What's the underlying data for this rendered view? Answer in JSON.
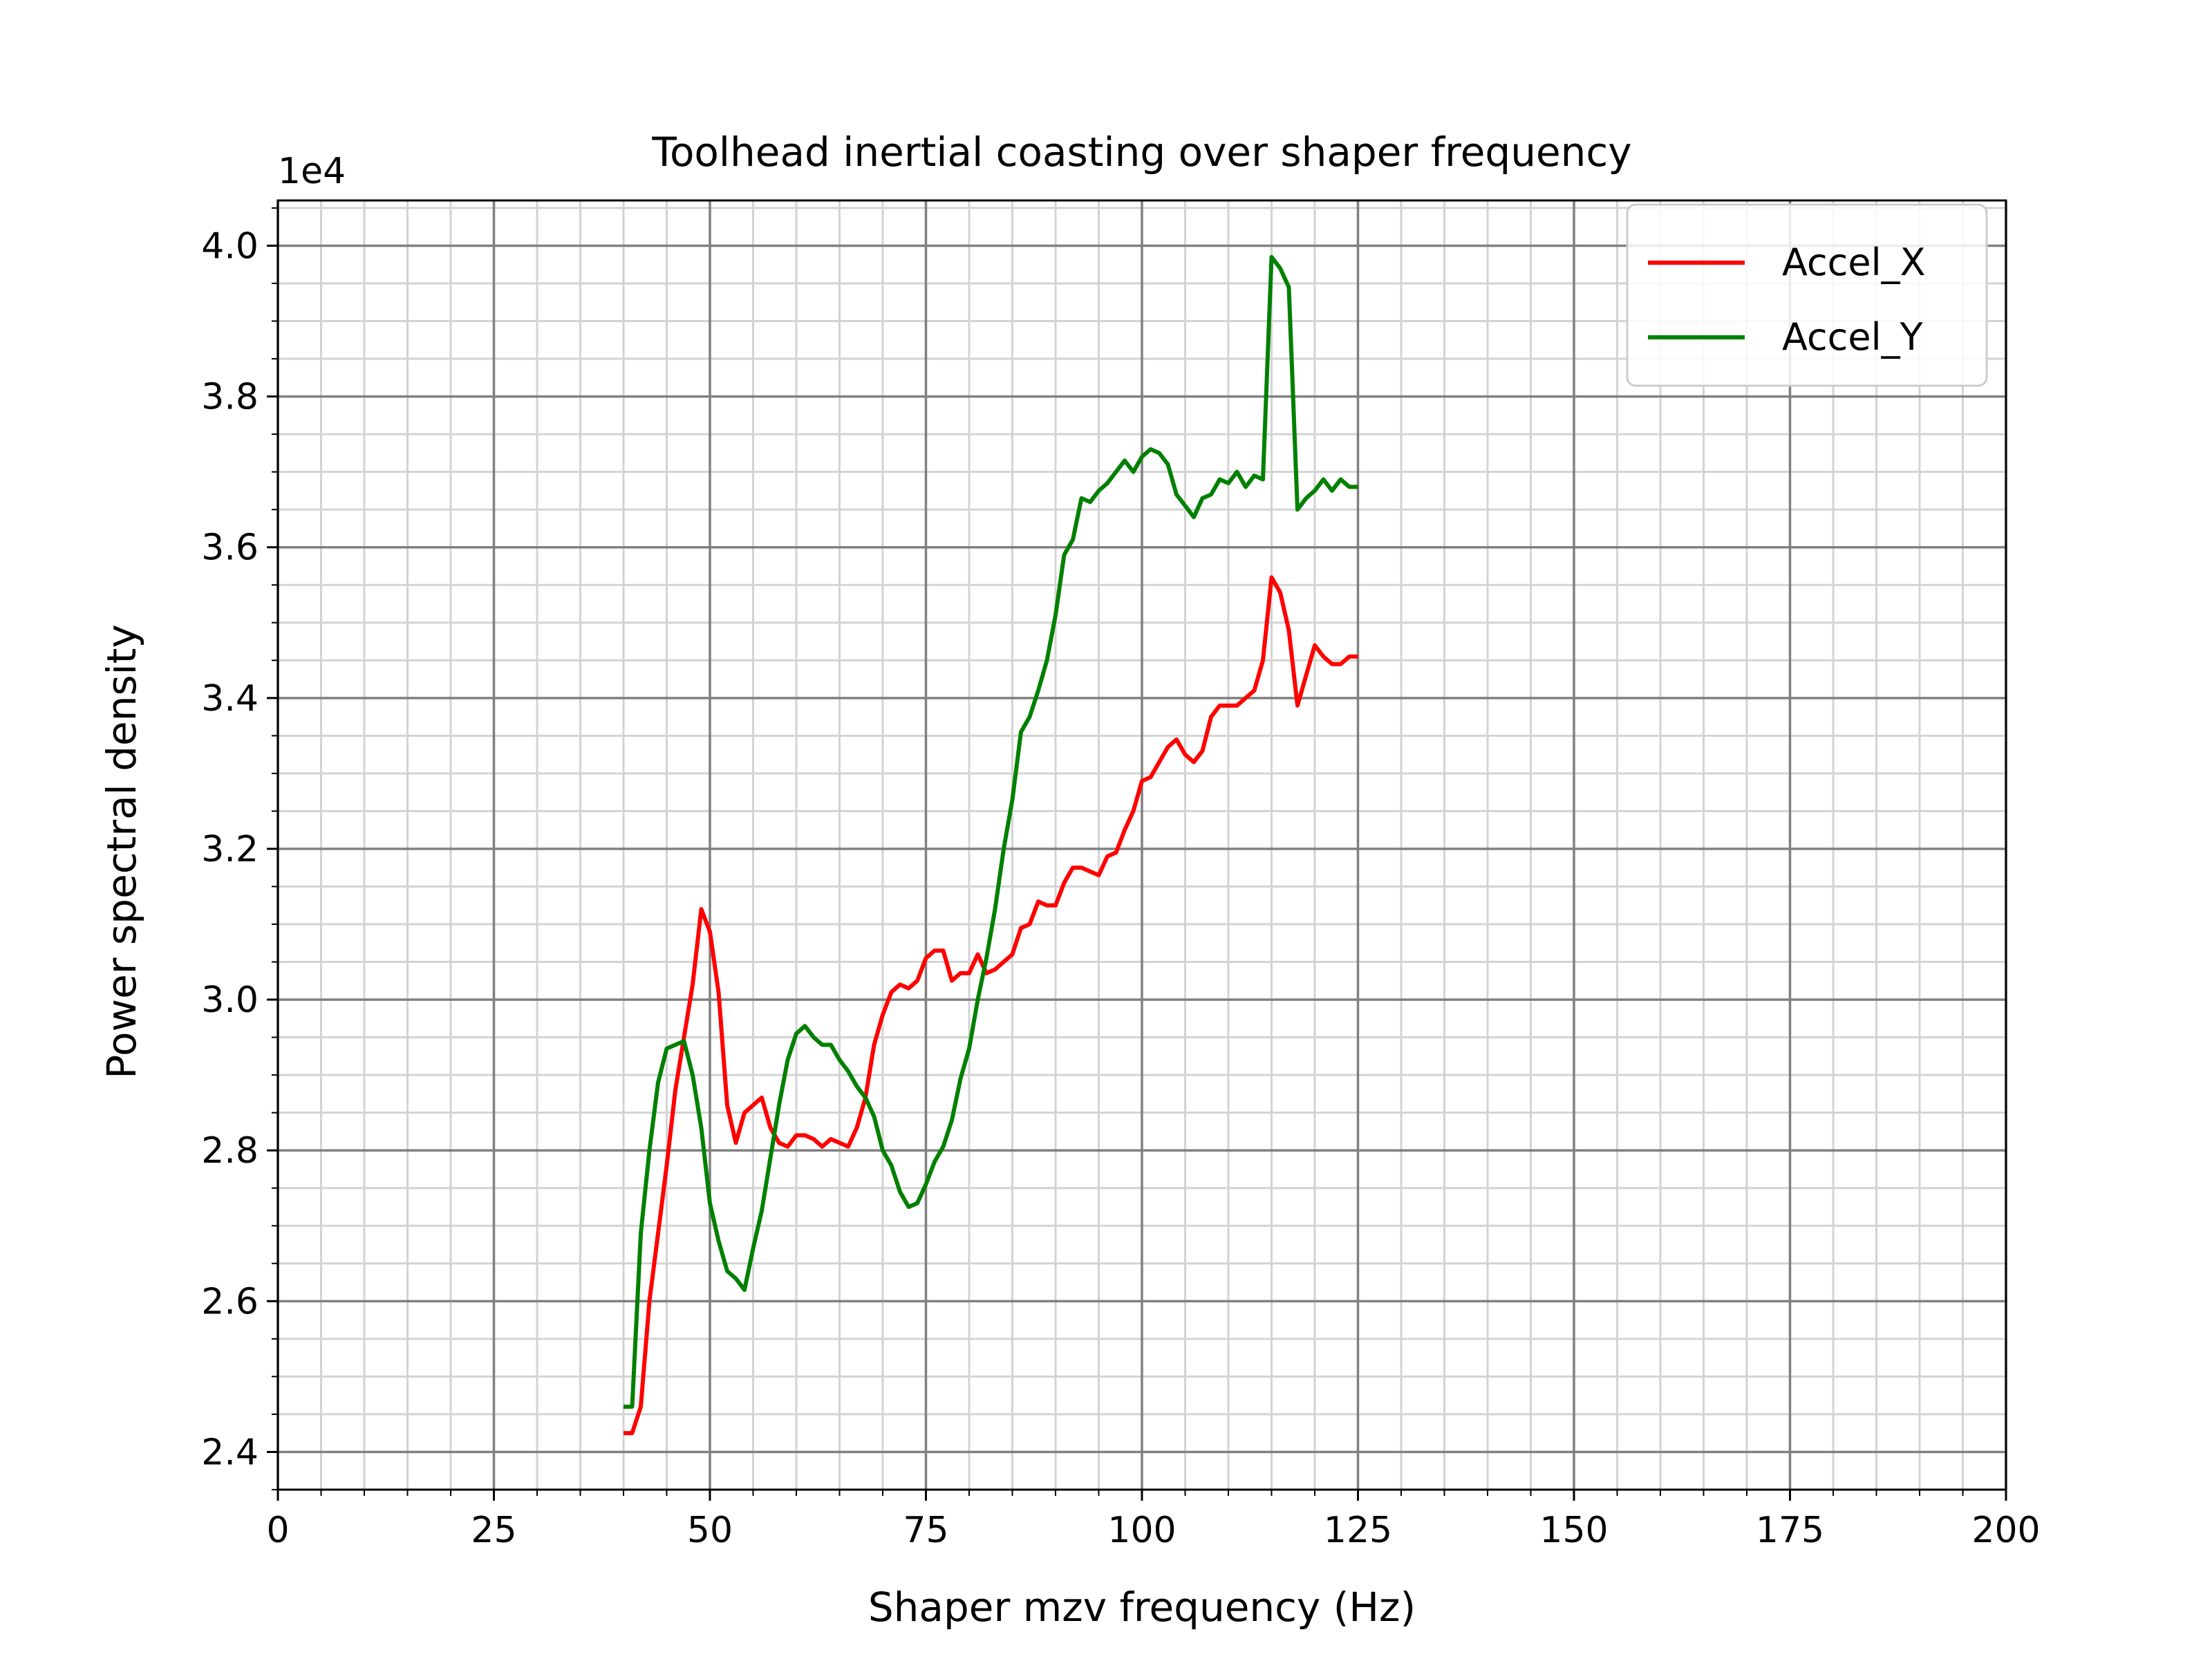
{
  "chart_data": {
    "type": "line",
    "title": "Toolhead inertial coasting over shaper frequency",
    "xlabel": "Shaper mzv frequency (Hz)",
    "ylabel": "Power spectral density",
    "y_offset_label": "1e4",
    "xlim": [
      0,
      200
    ],
    "ylim": [
      2.35,
      4.06
    ],
    "x_ticks": [
      0,
      25,
      50,
      75,
      100,
      125,
      150,
      175,
      200
    ],
    "x_tick_labels": [
      "0",
      "25",
      "50",
      "75",
      "100",
      "125",
      "150",
      "175",
      "200"
    ],
    "y_ticks": [
      2.4,
      2.6,
      2.8,
      3.0,
      3.2,
      3.4,
      3.6,
      3.8,
      4.0
    ],
    "y_tick_labels": [
      "2.4",
      "2.6",
      "2.8",
      "3.0",
      "3.2",
      "3.4",
      "3.6",
      "3.8",
      "4.0"
    ],
    "x_minor_step": 5,
    "y_minor_step": 0.05,
    "grid": true,
    "legend_position": "top-right",
    "x": [
      40,
      41,
      42,
      43,
      44,
      45,
      46,
      47,
      48,
      49,
      50,
      51,
      52,
      53,
      54,
      55,
      56,
      57,
      58,
      59,
      60,
      61,
      62,
      63,
      64,
      65,
      66,
      67,
      68,
      69,
      70,
      71,
      72,
      73,
      74,
      75,
      76,
      77,
      78,
      79,
      80,
      81,
      82,
      83,
      84,
      85,
      86,
      87,
      88,
      89,
      90,
      91,
      92,
      93,
      94,
      95,
      96,
      97,
      98,
      99,
      100,
      101,
      102,
      103,
      104,
      105,
      106,
      107,
      108,
      109,
      110,
      111,
      112,
      113,
      114,
      115,
      116,
      117,
      118,
      119,
      120,
      121,
      122,
      123,
      124,
      125
    ],
    "series": [
      {
        "name": "Accel_X",
        "color": "#ff0000",
        "values": [
          2.425,
          2.425,
          2.46,
          2.6,
          2.69,
          2.78,
          2.88,
          2.95,
          3.02,
          3.12,
          3.09,
          3.01,
          2.86,
          2.81,
          2.85,
          2.86,
          2.87,
          2.83,
          2.81,
          2.805,
          2.82,
          2.82,
          2.815,
          2.805,
          2.815,
          2.81,
          2.805,
          2.83,
          2.87,
          2.94,
          2.98,
          3.01,
          3.02,
          3.015,
          3.025,
          3.055,
          3.065,
          3.065,
          3.025,
          3.035,
          3.035,
          3.06,
          3.035,
          3.04,
          3.05,
          3.06,
          3.095,
          3.1,
          3.13,
          3.125,
          3.125,
          3.155,
          3.175,
          3.175,
          3.17,
          3.165,
          3.19,
          3.195,
          3.225,
          3.25,
          3.29,
          3.295,
          3.315,
          3.335,
          3.345,
          3.325,
          3.315,
          3.33,
          3.375,
          3.39,
          3.39,
          3.39,
          3.4,
          3.41,
          3.45,
          3.56,
          3.54,
          3.49,
          3.39,
          3.43,
          3.47,
          3.455,
          3.445,
          3.445,
          3.455,
          3.455
        ]
      },
      {
        "name": "Accel_Y",
        "color": "#008000",
        "values": [
          2.46,
          2.46,
          2.69,
          2.8,
          2.89,
          2.935,
          2.94,
          2.945,
          2.9,
          2.83,
          2.73,
          2.68,
          2.64,
          2.63,
          2.615,
          2.67,
          2.72,
          2.79,
          2.86,
          2.92,
          2.955,
          2.965,
          2.95,
          2.94,
          2.94,
          2.92,
          2.905,
          2.885,
          2.87,
          2.845,
          2.8,
          2.78,
          2.745,
          2.725,
          2.73,
          2.755,
          2.785,
          2.805,
          2.84,
          2.895,
          2.935,
          3.0,
          3.055,
          3.12,
          3.2,
          3.265,
          3.355,
          3.375,
          3.41,
          3.45,
          3.51,
          3.59,
          3.61,
          3.665,
          3.66,
          3.675,
          3.685,
          3.7,
          3.715,
          3.7,
          3.72,
          3.73,
          3.725,
          3.71,
          3.67,
          3.655,
          3.64,
          3.665,
          3.67,
          3.69,
          3.685,
          3.7,
          3.68,
          3.695,
          3.69,
          3.985,
          3.97,
          3.945,
          3.65,
          3.665,
          3.675,
          3.69,
          3.675,
          3.69,
          3.68,
          3.68
        ]
      }
    ]
  }
}
